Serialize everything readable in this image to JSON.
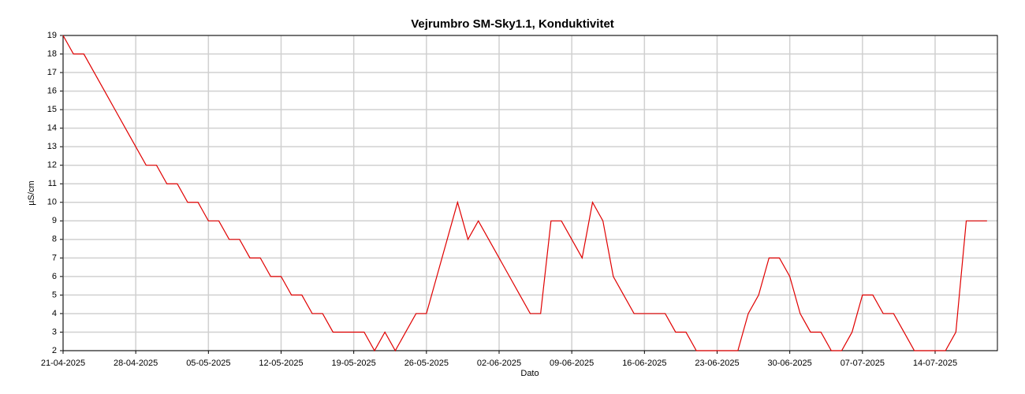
{
  "chart_data": {
    "type": "line",
    "title": "Vejrumbro SM-Sky1.1, Konduktivitet",
    "x_label": "Dato",
    "y_label": "µS/cm",
    "x": [
      "2025-04-21",
      "2025-04-22",
      "2025-04-23",
      "2025-04-24",
      "2025-04-25",
      "2025-04-26",
      "2025-04-27",
      "2025-04-28",
      "2025-04-29",
      "2025-04-30",
      "2025-05-01",
      "2025-05-02",
      "2025-05-03",
      "2025-05-04",
      "2025-05-05",
      "2025-05-06",
      "2025-05-07",
      "2025-05-08",
      "2025-05-09",
      "2025-05-10",
      "2025-05-11",
      "2025-05-12",
      "2025-05-13",
      "2025-05-14",
      "2025-05-15",
      "2025-05-16",
      "2025-05-17",
      "2025-05-18",
      "2025-05-19",
      "2025-05-20",
      "2025-05-21",
      "2025-05-22",
      "2025-05-23",
      "2025-05-24",
      "2025-05-25",
      "2025-05-26",
      "2025-05-27",
      "2025-05-28",
      "2025-05-29",
      "2025-05-30",
      "2025-05-31",
      "2025-06-01",
      "2025-06-02",
      "2025-06-03",
      "2025-06-04",
      "2025-06-05",
      "2025-06-06",
      "2025-06-07",
      "2025-06-08",
      "2025-06-09",
      "2025-06-10",
      "2025-06-11",
      "2025-06-12",
      "2025-06-13",
      "2025-06-14",
      "2025-06-15",
      "2025-06-16",
      "2025-06-17",
      "2025-06-18",
      "2025-06-19",
      "2025-06-20",
      "2025-06-21",
      "2025-06-22",
      "2025-06-23",
      "2025-06-24",
      "2025-06-25",
      "2025-06-26",
      "2025-06-27",
      "2025-06-28",
      "2025-06-29",
      "2025-06-30",
      "2025-07-01",
      "2025-07-02",
      "2025-07-03",
      "2025-07-04",
      "2025-07-05",
      "2025-07-06",
      "2025-07-07",
      "2025-07-08",
      "2025-07-09",
      "2025-07-10",
      "2025-07-11",
      "2025-07-12",
      "2025-07-13",
      "2025-07-14",
      "2025-07-15",
      "2025-07-16",
      "2025-07-17",
      "2025-07-18",
      "2025-07-19"
    ],
    "series": [
      {
        "name": "Konduktivitet",
        "color": "#e00000",
        "values": [
          19,
          18,
          18,
          17,
          16,
          15,
          14,
          13,
          12,
          12,
          11,
          11,
          10,
          10,
          9,
          9,
          8,
          8,
          7,
          7,
          6,
          6,
          5,
          5,
          4,
          4,
          3,
          3,
          3,
          3,
          2,
          3,
          2,
          3,
          4,
          4,
          6,
          8,
          10,
          8,
          9,
          8,
          7,
          6,
          5,
          4,
          4,
          9,
          9,
          8,
          7,
          10,
          9,
          6,
          5,
          4,
          4,
          4,
          4,
          3,
          3,
          2,
          2,
          2,
          2,
          2,
          4,
          5,
          7,
          7,
          6,
          4,
          3,
          3,
          2,
          2,
          3,
          5,
          5,
          4,
          4,
          3,
          2,
          2,
          2,
          2,
          3,
          9,
          9,
          9
        ]
      }
    ],
    "xlim": [
      "2025-04-21",
      "2025-07-20"
    ],
    "xticks": [
      {
        "value": "2025-04-21",
        "label": "21-04-2025"
      },
      {
        "value": "2025-04-28",
        "label": "28-04-2025"
      },
      {
        "value": "2025-05-05",
        "label": "05-05-2025"
      },
      {
        "value": "2025-05-12",
        "label": "12-05-2025"
      },
      {
        "value": "2025-05-19",
        "label": "19-05-2025"
      },
      {
        "value": "2025-05-26",
        "label": "26-05-2025"
      },
      {
        "value": "2025-06-02",
        "label": "02-06-2025"
      },
      {
        "value": "2025-06-09",
        "label": "09-06-2025"
      },
      {
        "value": "2025-06-16",
        "label": "16-06-2025"
      },
      {
        "value": "2025-06-23",
        "label": "23-06-2025"
      },
      {
        "value": "2025-06-30",
        "label": "30-06-2025"
      },
      {
        "value": "2025-07-07",
        "label": "07-07-2025"
      },
      {
        "value": "2025-07-14",
        "label": "14-07-2025"
      }
    ],
    "ylim": [
      2,
      19
    ],
    "yticks": [
      2,
      3,
      4,
      5,
      6,
      7,
      8,
      9,
      10,
      11,
      12,
      13,
      14,
      15,
      16,
      17,
      18,
      19
    ],
    "grid": true
  }
}
